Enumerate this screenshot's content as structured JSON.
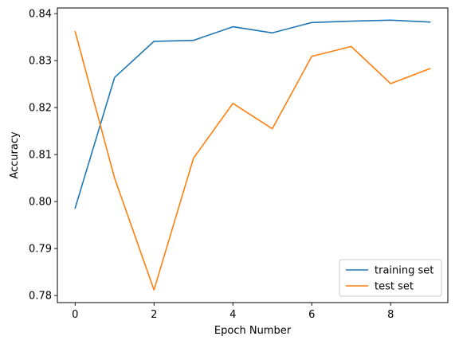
{
  "chart_data": {
    "type": "line",
    "title": "",
    "xlabel": "Epoch Number",
    "ylabel": "Accuracy",
    "xlim": [
      -0.45,
      9.45
    ],
    "ylim": [
      0.7785,
      0.8412
    ],
    "xticks": [
      0,
      2,
      4,
      6,
      8
    ],
    "xtick_labels": [
      "0",
      "2",
      "4",
      "6",
      "8"
    ],
    "yticks": [
      0.78,
      0.79,
      0.8,
      0.81,
      0.82,
      0.83,
      0.84
    ],
    "ytick_labels": [
      "0.78",
      "0.79",
      "0.80",
      "0.81",
      "0.82",
      "0.83",
      "0.84"
    ],
    "grid": false,
    "legend": "lower-right",
    "x": [
      0,
      1,
      2,
      3,
      4,
      5,
      6,
      7,
      8,
      9
    ],
    "series": [
      {
        "name": "training set",
        "color": "#1f77b4",
        "values": [
          0.7986,
          0.8264,
          0.8341,
          0.8343,
          0.8372,
          0.8359,
          0.8381,
          0.8384,
          0.8386,
          0.8382
        ]
      },
      {
        "name": "test set",
        "color": "#ff7f0e",
        "values": [
          0.8362,
          0.805,
          0.7812,
          0.8092,
          0.8209,
          0.8155,
          0.8309,
          0.833,
          0.8251,
          0.8283
        ]
      }
    ]
  }
}
